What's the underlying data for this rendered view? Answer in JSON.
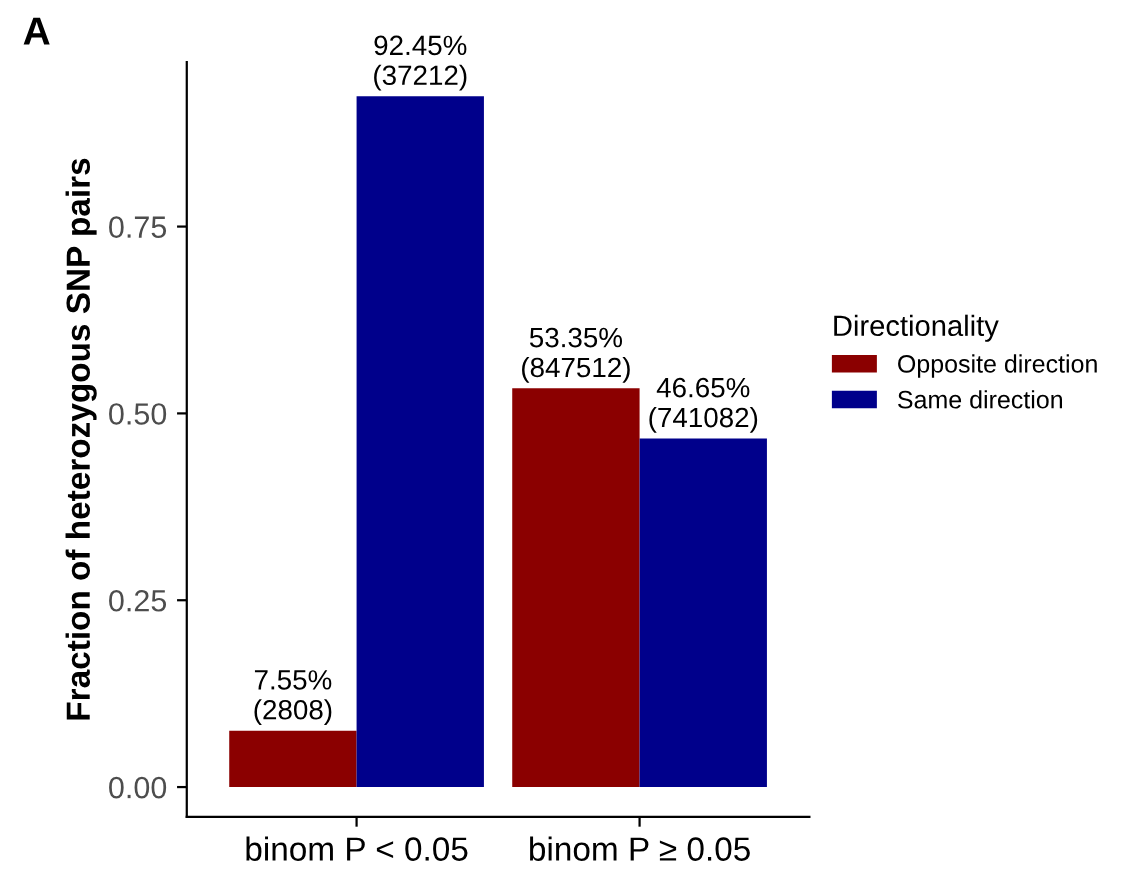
{
  "chart_data": {
    "type": "bar",
    "categories": [
      "binom P < 0.05",
      "binom P ≥ 0.05"
    ],
    "ylabel": "Fraction of heterozygous SNP pairs",
    "legend_title": "Directionality",
    "legend": "right",
    "grid": false,
    "ylim": [
      -0.04,
      0.97
    ],
    "yticks": [
      {
        "value": 0,
        "label": "0.00"
      },
      {
        "value": 0.25,
        "label": "0.25"
      },
      {
        "value": 0.5,
        "label": "0.50"
      },
      {
        "value": 0.75,
        "label": "0.75"
      }
    ],
    "annotations": [
      "A"
    ],
    "series": [
      {
        "name": "Opposite direction",
        "color": "#8b0000",
        "values": [
          0.0755,
          0.5335
        ],
        "value_labels": [
          "7.55%\n(2808)",
          "53.35%\n(847512)"
        ]
      },
      {
        "name": "Same direction",
        "color": "#00008b",
        "values": [
          0.9245,
          0.4665
        ],
        "value_labels": [
          "92.45%\n(37212)",
          "46.65%\n(741082)"
        ]
      }
    ]
  }
}
